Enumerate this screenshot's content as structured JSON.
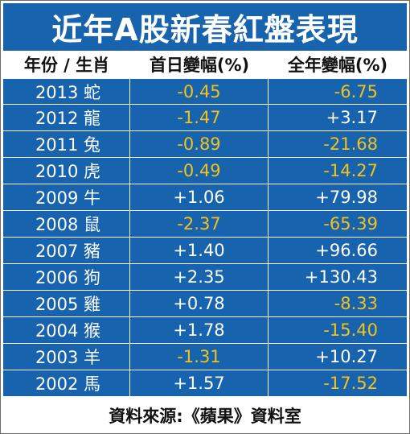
{
  "title": "近年A股新春紅盤表現",
  "columns": [
    "年份 / 生肖",
    "首日變幅(%)",
    "全年變幅(%)"
  ],
  "rows": [
    {
      "year": "2013 蛇",
      "first_day": "-0.45",
      "full_year": "-6.75"
    },
    {
      "year": "2012 龍",
      "first_day": "-1.47",
      "full_year": "+3.17"
    },
    {
      "year": "2011 兔",
      "first_day": "-0.89",
      "full_year": "-21.68"
    },
    {
      "year": "2010 虎",
      "first_day": "-0.49",
      "full_year": "-14.27"
    },
    {
      "year": "2009 牛",
      "first_day": "+1.06",
      "full_year": "+79.98"
    },
    {
      "year": "2008 鼠",
      "first_day": "-2.37",
      "full_year": "-65.39"
    },
    {
      "year": "2007 豬",
      "first_day": "+1.40",
      "full_year": "+96.66"
    },
    {
      "year": "2006 狗",
      "first_day": "+2.35",
      "full_year": "+130.43"
    },
    {
      "year": "2005 雞",
      "first_day": "+0.78",
      "full_year": "-8.33"
    },
    {
      "year": "2004 猴",
      "first_day": "+1.78",
      "full_year": "-15.40"
    },
    {
      "year": "2003 羊",
      "first_day": "-1.31",
      "full_year": "+10.27"
    },
    {
      "year": "2002 馬",
      "first_day": "+1.57",
      "full_year": "-17.52"
    }
  ],
  "source": "資料來源:《蘋果》資料室",
  "colors": {
    "header_blue": "#1863ad",
    "negative": "#f2c21b",
    "positive": "#ffffff"
  }
}
